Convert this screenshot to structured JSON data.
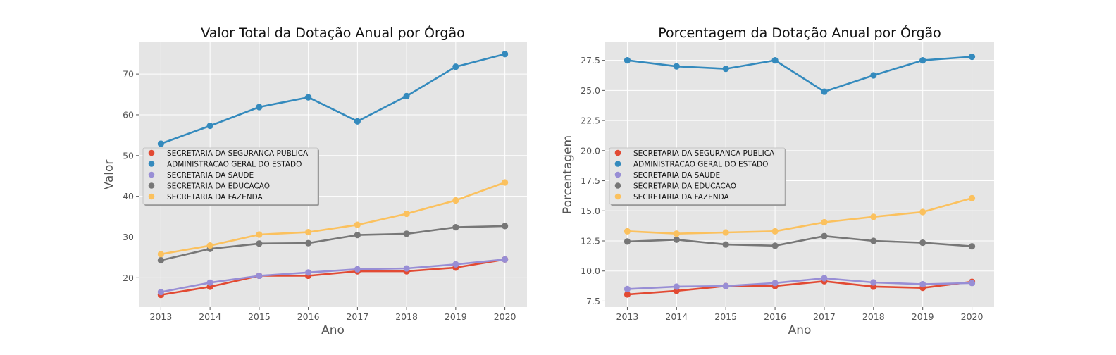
{
  "chart_data": [
    {
      "type": "line",
      "title": "Valor Total da Dotação Anual por Órgão",
      "xlabel": "Ano",
      "ylabel": "Valor",
      "x": [
        2013,
        2014,
        2015,
        2016,
        2017,
        2018,
        2019,
        2020
      ],
      "xlim": [
        2012.55,
        2020.45
      ],
      "ylim": [
        12.8,
        77.8
      ],
      "yticks": [
        20,
        30,
        40,
        50,
        60,
        70
      ],
      "ytick_labels": [
        "20",
        "30",
        "40",
        "50",
        "60",
        "70"
      ],
      "grid": true,
      "legend_position": "center-left",
      "series": [
        {
          "name": "SECRETARIA DA SEGURANCA PUBLICA",
          "color": "#E24A33",
          "values": [
            15.8,
            17.8,
            20.5,
            20.5,
            21.6,
            21.6,
            22.5,
            24.5
          ]
        },
        {
          "name": "ADMINISTRACAO GERAL DO ESTADO",
          "color": "#348ABD",
          "values": [
            52.9,
            57.3,
            61.9,
            64.3,
            58.4,
            64.6,
            71.8,
            74.9
          ]
        },
        {
          "name": "SECRETARIA DA SAUDE",
          "color": "#988ED5",
          "values": [
            16.5,
            18.8,
            20.5,
            21.3,
            22.1,
            22.3,
            23.3,
            24.5
          ]
        },
        {
          "name": "SECRETARIA DA EDUCACAO",
          "color": "#777777",
          "values": [
            24.3,
            27.1,
            28.4,
            28.5,
            30.5,
            30.8,
            32.4,
            32.7
          ]
        },
        {
          "name": "SECRETARIA DA FAZENDA",
          "color": "#FBC15E",
          "values": [
            25.8,
            27.9,
            30.6,
            31.2,
            33.0,
            35.7,
            39.0,
            43.4
          ]
        }
      ]
    },
    {
      "type": "line",
      "title": "Porcentagem da Dotação Anual por Órgão",
      "xlabel": "Ano",
      "ylabel": "Porcentagem",
      "x": [
        2013,
        2014,
        2015,
        2016,
        2017,
        2018,
        2019,
        2020
      ],
      "xlim": [
        2012.55,
        2020.45
      ],
      "ylim": [
        7.0,
        29.0
      ],
      "yticks": [
        7.5,
        10.0,
        12.5,
        15.0,
        17.5,
        20.0,
        22.5,
        25.0,
        27.5
      ],
      "ytick_labels": [
        "7.5",
        "10.0",
        "12.5",
        "15.0",
        "17.5",
        "20.0",
        "22.5",
        "25.0",
        "27.5"
      ],
      "grid": true,
      "legend_position": "center-left",
      "series": [
        {
          "name": "SECRETARIA DA SEGURANCA PUBLICA",
          "color": "#E24A33",
          "values": [
            8.05,
            8.35,
            8.75,
            8.75,
            9.15,
            8.7,
            8.6,
            9.1
          ]
        },
        {
          "name": "ADMINISTRACAO GERAL DO ESTADO",
          "color": "#348ABD",
          "values": [
            27.5,
            27.0,
            26.8,
            27.5,
            24.9,
            26.25,
            27.5,
            27.8
          ]
        },
        {
          "name": "SECRETARIA DA SAUDE",
          "color": "#988ED5",
          "values": [
            8.5,
            8.7,
            8.75,
            9.0,
            9.4,
            9.05,
            8.9,
            9.0
          ]
        },
        {
          "name": "SECRETARIA DA EDUCACAO",
          "color": "#777777",
          "values": [
            12.45,
            12.6,
            12.2,
            12.1,
            12.9,
            12.5,
            12.35,
            12.05
          ]
        },
        {
          "name": "SECRETARIA DA FAZENDA",
          "color": "#FBC15E",
          "values": [
            13.3,
            13.1,
            13.2,
            13.3,
            14.05,
            14.5,
            14.9,
            16.05
          ]
        }
      ]
    }
  ]
}
